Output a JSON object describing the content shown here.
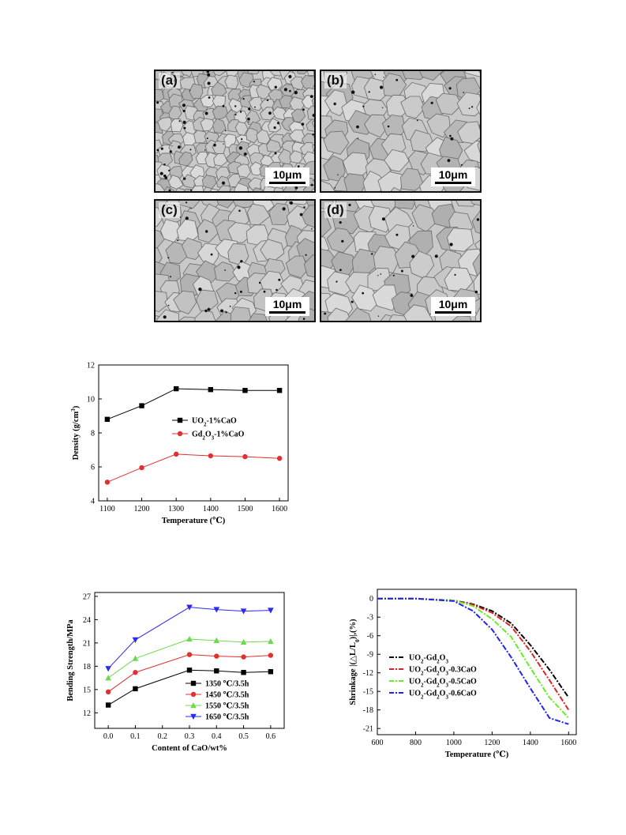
{
  "micrographs": [
    {
      "label": "(a)",
      "scale": "10μm"
    },
    {
      "label": "(b)",
      "scale": "10μm"
    },
    {
      "label": "(c)",
      "scale": "10μm"
    },
    {
      "label": "(d)",
      "scale": "10μm"
    }
  ],
  "chart_data": [
    {
      "id": "density",
      "type": "line",
      "title": "",
      "xlabel": "Temperature (℃)",
      "ylabel": "Density (g/cm³)",
      "xlim": [
        1075,
        1625
      ],
      "ylim": [
        4,
        12
      ],
      "xticks": [
        1100,
        1200,
        1300,
        1400,
        1500,
        1600
      ],
      "yticks": [
        4,
        6,
        8,
        10,
        12
      ],
      "x": [
        1100,
        1200,
        1300,
        1400,
        1500,
        1600
      ],
      "legend_position": "center-right",
      "series": [
        {
          "name": "UO₂-1%CaO",
          "color": "#000000",
          "marker": "square",
          "values": [
            8.8,
            9.6,
            10.6,
            10.55,
            10.5,
            10.5
          ]
        },
        {
          "name": "Gd₂O₃-1%CaO",
          "color": "#e03030",
          "marker": "circle",
          "values": [
            5.1,
            5.95,
            6.75,
            6.65,
            6.6,
            6.5
          ]
        }
      ]
    },
    {
      "id": "bending",
      "type": "line",
      "title": "",
      "xlabel": "Content of CaO/wt%",
      "ylabel": "Bending Strength/MPa",
      "xlim": [
        -0.05,
        0.65
      ],
      "ylim": [
        10,
        27.5
      ],
      "xticks": [
        0.0,
        0.1,
        0.2,
        0.3,
        0.4,
        0.5,
        0.6
      ],
      "yticks": [
        12,
        15,
        18,
        21,
        24,
        27
      ],
      "x": [
        0.0,
        0.1,
        0.3,
        0.4,
        0.5,
        0.6
      ],
      "legend_position": "bottom-right",
      "series": [
        {
          "name": "1350 ℃/3.5h",
          "color": "#000000",
          "marker": "square",
          "values": [
            13.0,
            15.1,
            17.5,
            17.4,
            17.2,
            17.3
          ]
        },
        {
          "name": "1450 ℃/3.5h",
          "color": "#e03030",
          "marker": "circle",
          "values": [
            14.7,
            17.2,
            19.5,
            19.3,
            19.2,
            19.4
          ]
        },
        {
          "name": "1550 ℃/3.5h",
          "color": "#6cd84a",
          "marker": "triangle-up",
          "values": [
            16.5,
            19.0,
            21.5,
            21.3,
            21.1,
            21.2
          ]
        },
        {
          "name": "1650 ℃/3.5h",
          "color": "#2a2af0",
          "marker": "triangle-down",
          "values": [
            17.7,
            21.4,
            25.6,
            25.3,
            25.1,
            25.2
          ]
        }
      ]
    },
    {
      "id": "shrinkage",
      "type": "line",
      "title": "",
      "xlabel": "Temperature (℃)",
      "ylabel": "Shrinkage |(△L/L₀)|,(%)",
      "xlim": [
        600,
        1640
      ],
      "ylim": [
        -22,
        1.5
      ],
      "xticks": [
        600,
        800,
        1000,
        1200,
        1400,
        1600
      ],
      "yticks": [
        0,
        -3,
        -6,
        -9,
        -12,
        -15,
        -18,
        -21
      ],
      "x": [
        600,
        800,
        1000,
        1100,
        1200,
        1300,
        1400,
        1500,
        1600
      ],
      "legend_position": "bottom-left",
      "series": [
        {
          "name": "UO₂-Gd₂O₃",
          "color": "#000000",
          "values": [
            0,
            0,
            -0.3,
            -0.9,
            -2.0,
            -4.0,
            -7.5,
            -11.5,
            -16.0
          ]
        },
        {
          "name": "UO₂-Gd₂O₃-0.3CaO",
          "color": "#e02020",
          "values": [
            0,
            0,
            -0.3,
            -1.0,
            -2.3,
            -4.5,
            -8.5,
            -13.2,
            -18.0
          ]
        },
        {
          "name": "UO₂-Gd₂O₃-0.5CaO",
          "color": "#66ee22",
          "values": [
            0,
            0,
            -0.3,
            -1.2,
            -3.3,
            -6.2,
            -11.2,
            -16.0,
            -19.3
          ]
        },
        {
          "name": "UO₂-Gd₂O₃-0.6CaO",
          "color": "#2222ee",
          "values": [
            0,
            0,
            -0.4,
            -2.0,
            -5.0,
            -9.5,
            -14.5,
            -19.3,
            -20.3
          ]
        }
      ]
    }
  ]
}
